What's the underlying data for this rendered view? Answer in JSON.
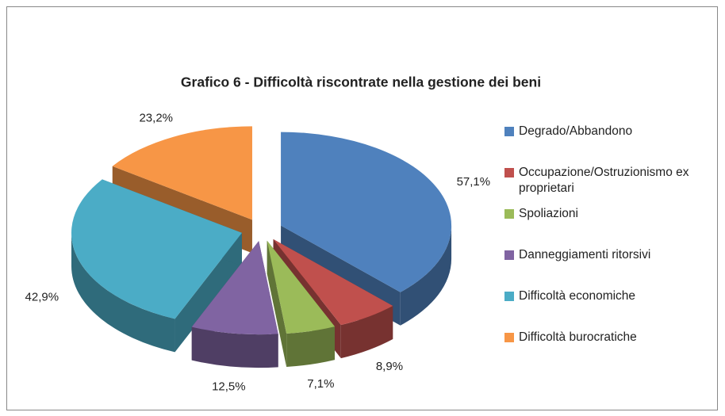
{
  "chart_data": {
    "type": "pie",
    "title": "Grafico 6 - Difficoltà riscontrate nella gestione dei beni",
    "categories": [
      "Degrado/Abbandono",
      "Occupazione/Ostruzionismo ex proprietari",
      "Spoliazioni",
      "Danneggiamenti ritorsivi",
      "Difficoltà economiche",
      "Difficoltà burocratiche"
    ],
    "values": [
      57.1,
      8.9,
      7.1,
      12.5,
      42.9,
      23.2
    ],
    "value_labels": [
      "57,1%",
      "8,9%",
      "7,1%",
      "12,5%",
      "42,9%",
      "23,2%"
    ],
    "colors": [
      "#4f81bd",
      "#c0504d",
      "#9bbb59",
      "#8064a2",
      "#4bacc6",
      "#f79646"
    ],
    "legend": "right"
  }
}
